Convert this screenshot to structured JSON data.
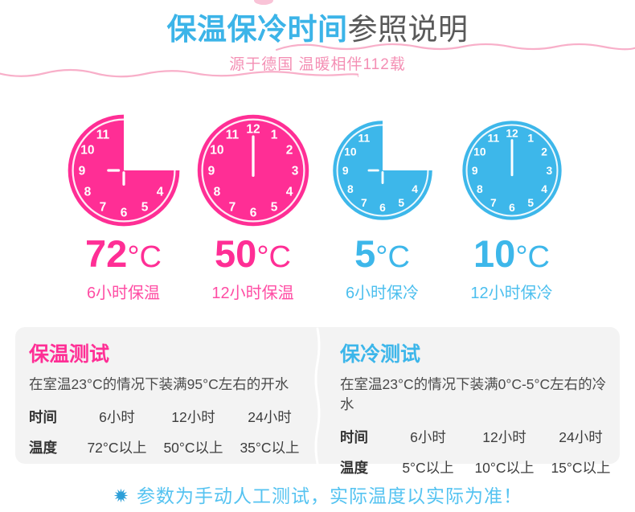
{
  "header": {
    "title_highlight": "保温保冷时间",
    "title_rest": "参照说明",
    "subtitle": "源于德国 温暖相伴112载"
  },
  "colors": {
    "pink": "#ff2e95",
    "blue": "#3db7ea",
    "title_blue": "#3cb4e8",
    "title_gray": "#595959",
    "subtitle_pink": "#f48fb4",
    "wave_pink": "#f8afc9",
    "panel_bg": "#f3f3f3",
    "text_dark": "#3d3d3d",
    "footer_blue": "#55c3f1",
    "star_blue": "#2d9fd8"
  },
  "clocks": [
    {
      "style": "cut",
      "color_key": "pink",
      "numbers": [
        4,
        5,
        6,
        7,
        8,
        9,
        10,
        11
      ],
      "temp_value": "72",
      "temp_unit": "°C",
      "caption": "6小时保温"
    },
    {
      "style": "full",
      "color_key": "pink",
      "numbers": [
        12,
        1,
        2,
        3,
        4,
        5,
        6,
        7,
        8,
        9,
        10,
        11
      ],
      "temp_value": "50",
      "temp_unit": "°C",
      "caption": "12小时保温"
    },
    {
      "style": "cut",
      "color_key": "blue",
      "numbers": [
        4,
        5,
        6,
        7,
        8,
        9,
        10,
        11
      ],
      "temp_value": "5",
      "temp_unit": "°C",
      "caption": "6小时保冷"
    },
    {
      "style": "full",
      "color_key": "blue",
      "numbers": [
        12,
        1,
        2,
        3,
        4,
        5,
        6,
        7,
        8,
        9,
        10,
        11
      ],
      "temp_value": "10",
      "temp_unit": "°C",
      "caption": "12小时保冷"
    }
  ],
  "panels": [
    {
      "heading": "保温测试",
      "description": "在室温23°C的情况下装满95°C左右的开水",
      "rows": [
        {
          "label": "时间",
          "cells": [
            "6小时",
            "12小时",
            "24小时"
          ]
        },
        {
          "label": "温度",
          "cells": [
            "72°C以上",
            "50°C以上",
            "35°C以上"
          ]
        }
      ]
    },
    {
      "heading": "保冷测试",
      "description": "在室温23°C的情况下装满0°C-5°C左右的冷水",
      "rows": [
        {
          "label": "时间",
          "cells": [
            "6小时",
            "12小时",
            "24小时"
          ]
        },
        {
          "label": "温度",
          "cells": [
            "5°C以上",
            "10°C以上",
            "15°C以上"
          ]
        }
      ]
    }
  ],
  "footer": {
    "note": "参数为手动人工测试，实际温度以实际为准！"
  }
}
